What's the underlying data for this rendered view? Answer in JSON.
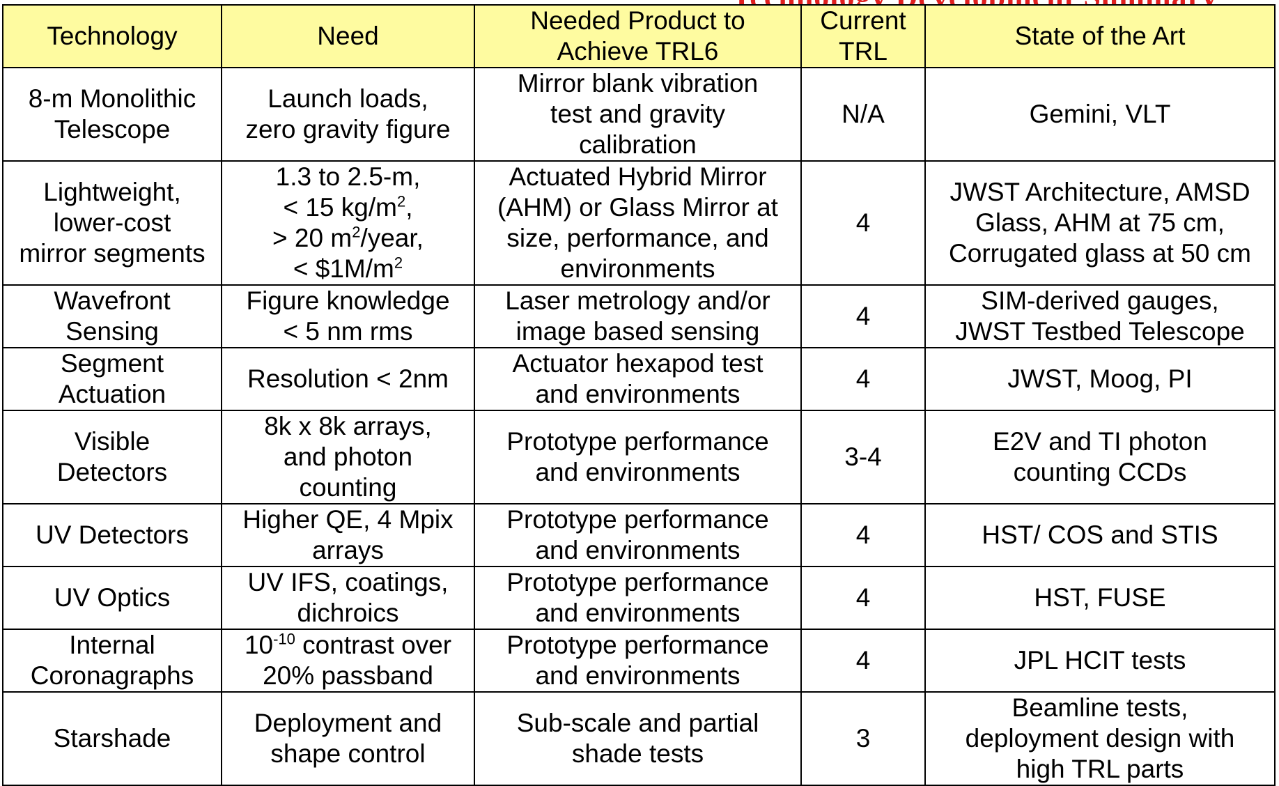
{
  "title_fragment": "Technology Development Summary",
  "headers": [
    "Technology",
    "Need",
    "Needed Product to Achieve TRL6",
    "Current TRL",
    "State of the Art"
  ],
  "header_lines": {
    "product": [
      "Needed Product to",
      "Achieve TRL6"
    ],
    "trl": [
      "Current",
      "TRL"
    ]
  },
  "rows": [
    {
      "technology": [
        "8-m Monolithic",
        "Telescope"
      ],
      "need": [
        "Launch loads,",
        "zero gravity figure"
      ],
      "product": [
        "Mirror blank vibration",
        "test and gravity",
        "calibration"
      ],
      "trl": "N/A",
      "state": [
        "Gemini, VLT"
      ]
    },
    {
      "technology": [
        "Lightweight,",
        "lower-cost",
        "mirror segments"
      ],
      "need": [
        "1.3 to 2.5-m,",
        "< 15 kg/m",
        "2",
        ",",
        "> 20 m",
        "2",
        "/year,",
        "< $1M/m",
        "2"
      ],
      "product": [
        "Actuated Hybrid Mirror",
        "(AHM) or Glass Mirror at",
        "size, performance, and",
        "environments"
      ],
      "trl": "4",
      "state": [
        "JWST Architecture, AMSD",
        "Glass, AHM at 75 cm,",
        "Corrugated glass at 50 cm"
      ]
    },
    {
      "technology": [
        "Wavefront",
        "Sensing"
      ],
      "need": [
        "Figure knowledge",
        "< 5 nm rms"
      ],
      "product": [
        "Laser metrology and/or",
        "image based sensing"
      ],
      "trl": "4",
      "state": [
        "SIM-derived gauges,",
        "JWST Testbed Telescope"
      ]
    },
    {
      "technology": [
        "Segment",
        "Actuation"
      ],
      "need": [
        "Resolution < 2nm"
      ],
      "product": [
        "Actuator hexapod test",
        "and environments"
      ],
      "trl": "4",
      "state": [
        "JWST, Moog, PI"
      ]
    },
    {
      "technology": [
        "Visible",
        "Detectors"
      ],
      "need": [
        "8k x 8k arrays,",
        "and photon",
        "counting"
      ],
      "product": [
        "Prototype performance",
        "and environments"
      ],
      "trl": "3-4",
      "state": [
        "E2V and TI photon",
        "counting CCDs"
      ]
    },
    {
      "technology": [
        "UV Detectors"
      ],
      "need": [
        "Higher QE, 4 Mpix",
        "arrays"
      ],
      "product": [
        "Prototype performance",
        "and environments"
      ],
      "trl": "4",
      "state": [
        "HST/ COS and STIS"
      ]
    },
    {
      "technology": [
        "UV Optics"
      ],
      "need": [
        "UV IFS, coatings,",
        "dichroics"
      ],
      "product": [
        "Prototype performance",
        "and environments"
      ],
      "trl": "4",
      "state": [
        "HST, FUSE"
      ]
    },
    {
      "technology": [
        "Internal",
        "Coronagraphs"
      ],
      "need": [
        "10",
        "-10",
        " contrast over",
        "20% passband"
      ],
      "product": [
        "Prototype performance",
        "and environments"
      ],
      "trl": "4",
      "state": [
        "JPL HCIT tests"
      ]
    },
    {
      "technology": [
        "Starshade"
      ],
      "need": [
        "Deployment and",
        "shape control"
      ],
      "product": [
        "Sub-scale and partial",
        "shade tests"
      ],
      "trl": "3",
      "state": [
        "Beamline tests,",
        "deployment design with",
        "high TRL parts"
      ]
    }
  ]
}
